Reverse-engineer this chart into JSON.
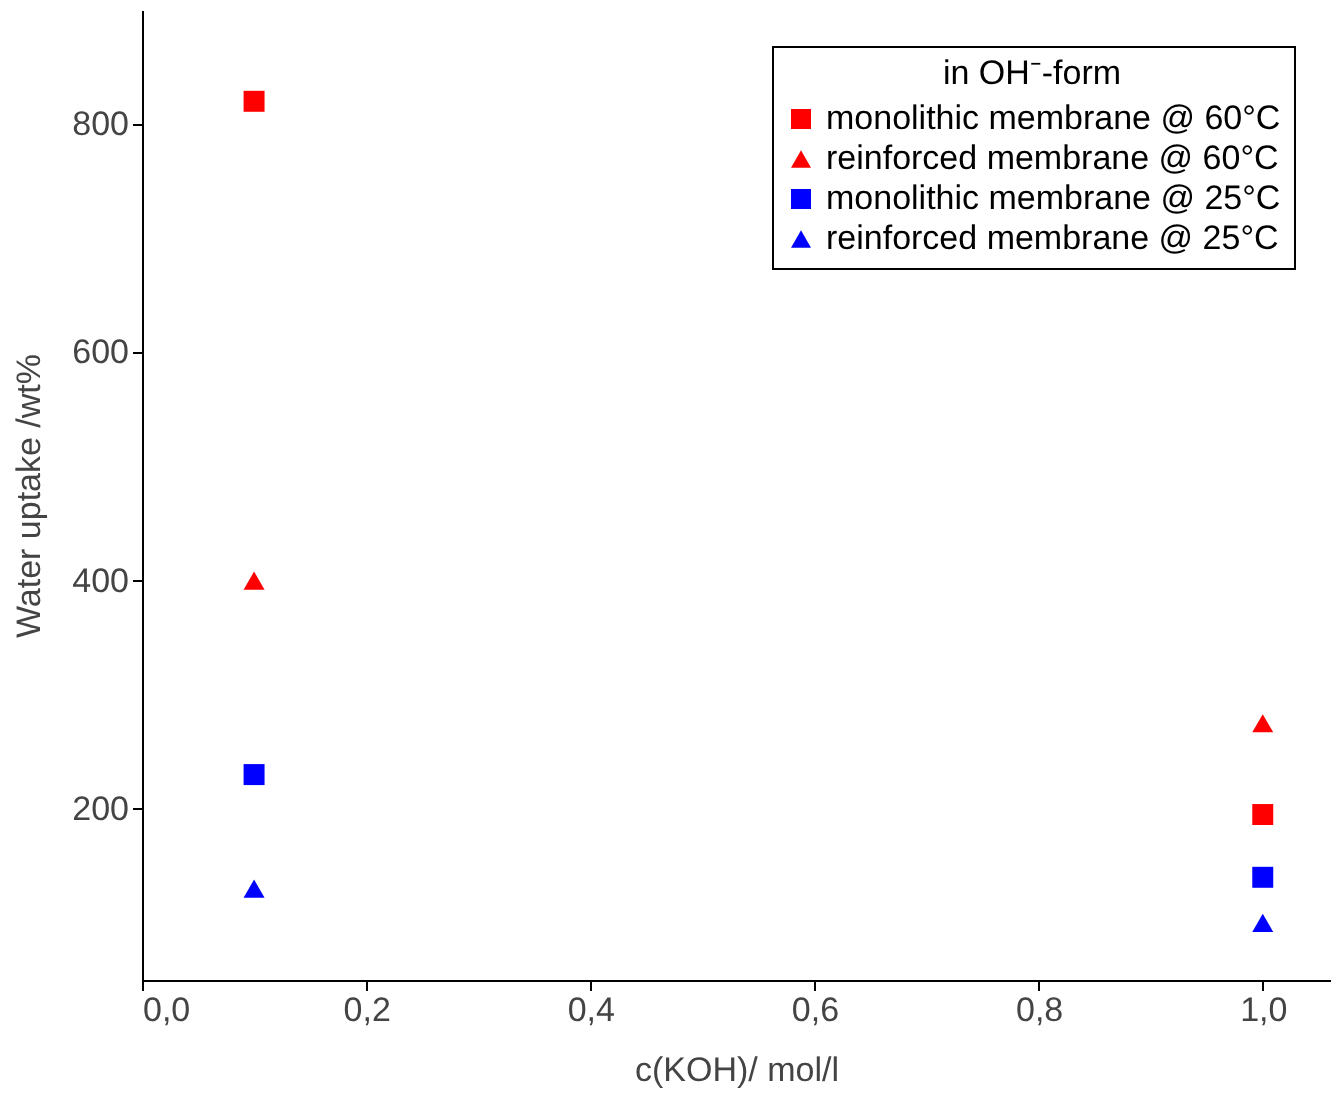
{
  "chart_data": {
    "type": "scatter",
    "xlabel": "c(KOH)/ mol/l",
    "ylabel": "Water uptake /wt%",
    "legend_title": "in OH⁻-form",
    "legend": "top right",
    "grid": false,
    "x": [
      0.1,
      1.0
    ],
    "series": [
      {
        "name": "monolithic membrane @ 60°C",
        "color": "#ff0000",
        "marker": "square",
        "values": [
          820,
          195
        ]
      },
      {
        "name": "reinforced membrane @ 60°C",
        "color": "#ff0000",
        "marker": "triangle",
        "values": [
          400,
          275
        ]
      },
      {
        "name": "monolithic membrane @ 25°C",
        "color": "#0000ff",
        "marker": "square",
        "values": [
          230,
          140
        ]
      },
      {
        "name": "reinforced membrane @ 25°C",
        "color": "#0000ff",
        "marker": "triangle",
        "values": [
          130,
          100
        ]
      }
    ],
    "xlim": [
      0,
      1.06
    ],
    "ylim": [
      50,
      900
    ],
    "xticks": [
      {
        "value": 0,
        "label": "0,0"
      },
      {
        "value": 0.2,
        "label": "0,2"
      },
      {
        "value": 0.4,
        "label": "0,4"
      },
      {
        "value": 0.6,
        "label": "0,6"
      },
      {
        "value": 0.8,
        "label": "0,8"
      },
      {
        "value": 1.0,
        "label": "1,0"
      }
    ],
    "yticks": [
      200,
      400,
      600,
      800
    ]
  }
}
